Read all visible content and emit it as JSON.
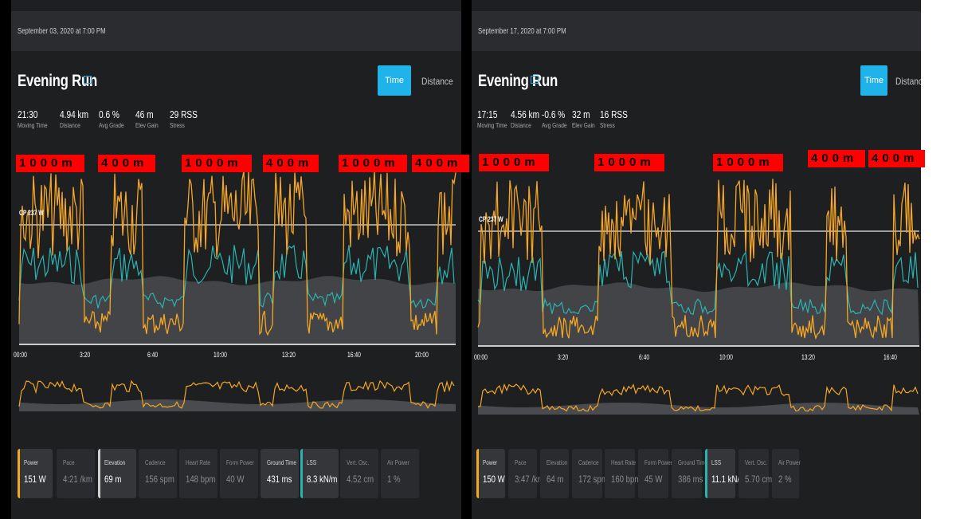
{
  "colors": {
    "power": "#f5a623",
    "lss": "#2bb3b1",
    "elevation": "#d0d0d0",
    "accent": "#1fb3ea",
    "label_bg": "#ff0000"
  },
  "left": {
    "date": "September 03, 2020 at 7:00 PM",
    "title": "Evening Run",
    "toggle": {
      "time": "Time",
      "distance": "Distance"
    },
    "stats": [
      {
        "value": "21:30",
        "label": "Moving Time"
      },
      {
        "value": "4.94 km",
        "label": "Distance"
      },
      {
        "value": "0.6 %",
        "label": "Avg Grade"
      },
      {
        "value": "46 m",
        "label": "Elev Gain"
      },
      {
        "value": "29 RSS",
        "label": "Stress"
      }
    ],
    "interval_labels": [
      "1000m",
      "400m",
      "1000m",
      "400m",
      "1000m",
      "400m"
    ],
    "cp_label": "CP 237 W",
    "x_ticks": [
      "00:00",
      "3:20",
      "6:40",
      "10:00",
      "13:20",
      "16:40",
      "20:00"
    ],
    "tiles": [
      {
        "label": "Power",
        "value": "151 W",
        "selected": true,
        "bar": "power"
      },
      {
        "label": "Pace",
        "value": "4:21 /km",
        "selected": false
      },
      {
        "label": "Elevation",
        "value": "69 m",
        "selected": true,
        "bar": "elevation"
      },
      {
        "label": "Cadence",
        "value": "156 spm",
        "selected": false
      },
      {
        "label": "Heart Rate",
        "value": "148 bpm",
        "selected": false
      },
      {
        "label": "Form Power",
        "value": "40 W",
        "selected": false
      },
      {
        "label": "Ground Time",
        "value": "431 ms",
        "selected": true
      },
      {
        "label": "LSS",
        "value": "8.3 kN/m",
        "selected": true,
        "bar": "lss"
      },
      {
        "label": "Vert. Osc.",
        "value": "4.52 cm",
        "selected": false
      },
      {
        "label": "Air Power",
        "value": "1 %",
        "selected": false
      }
    ]
  },
  "right": {
    "date": "September 17, 2020 at 7:00 PM",
    "title": "Evening Run",
    "toggle": {
      "time": "Time",
      "distance": "Distance"
    },
    "stats": [
      {
        "value": "17:15",
        "label": "Moving Time"
      },
      {
        "value": "4.56 km",
        "label": "Distance"
      },
      {
        "value": "-0.6 %",
        "label": "Avg Grade"
      },
      {
        "value": "32 m",
        "label": "Elev Gain"
      },
      {
        "value": "16 RSS",
        "label": "Stress"
      }
    ],
    "interval_labels": [
      "1000m",
      "1000m",
      "1000m",
      "400m",
      "400m"
    ],
    "cp_label": "CP 237 W",
    "x_ticks": [
      "00:00",
      "3:20",
      "6:40",
      "10:00",
      "13:20",
      "16:40"
    ],
    "tiles": [
      {
        "label": "Power",
        "value": "150 W",
        "selected": true,
        "bar": "power"
      },
      {
        "label": "Pace",
        "value": "3:47 /km",
        "selected": false
      },
      {
        "label": "Elevation",
        "value": "64 m",
        "selected": false
      },
      {
        "label": "Cadence",
        "value": "172 spm",
        "selected": false
      },
      {
        "label": "Heart Rate",
        "value": "160 bpm",
        "selected": false
      },
      {
        "label": "Form Power",
        "value": "45 W",
        "selected": false
      },
      {
        "label": "Ground Time",
        "value": "386 ms",
        "selected": false
      },
      {
        "label": "LSS",
        "value": "11.1 kN/m",
        "selected": true,
        "bar": "lss"
      },
      {
        "label": "Vert. Osc.",
        "value": "5.70 cm",
        "selected": false
      },
      {
        "label": "Air Power",
        "value": "2 %",
        "selected": false
      }
    ]
  }
}
